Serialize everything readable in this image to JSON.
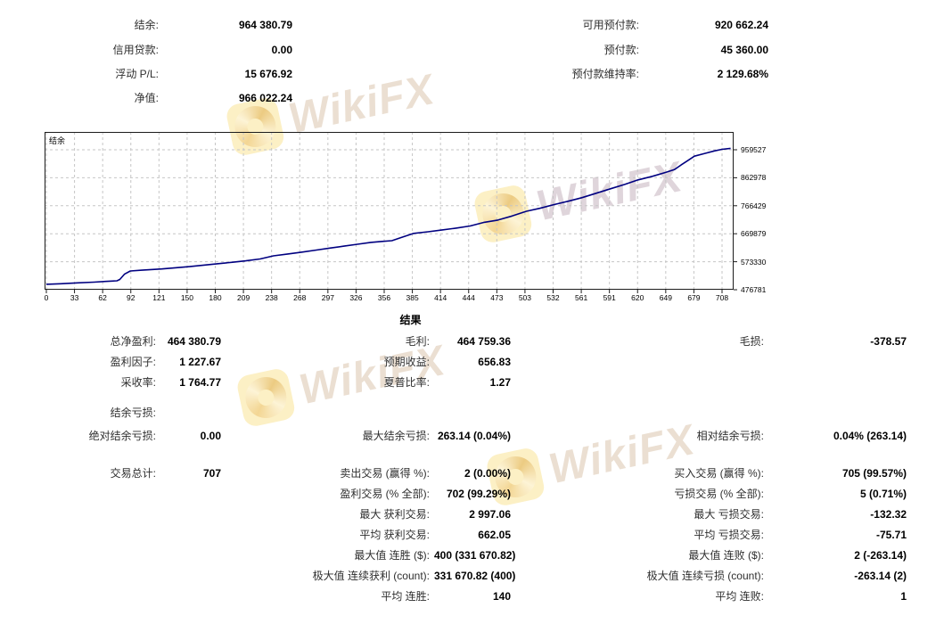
{
  "watermark": {
    "brand": "WikiFX"
  },
  "colors": {
    "line": "#000080",
    "grid": "#c6c6c6",
    "chart_border": "#1c1c1c",
    "watermark_text": "#d8c0a6",
    "watermark_logo_bg": "#fcf0c5"
  },
  "summary": {
    "left": [
      {
        "label": "结余:",
        "value": "964 380.79"
      },
      {
        "label": "信用贷款:",
        "value": "0.00"
      },
      {
        "label": "浮动 P/L:",
        "value": "15 676.92"
      },
      {
        "label": "净值:",
        "value": "966 022.24"
      }
    ],
    "right": [
      {
        "label": "可用预付款:",
        "value": "920 662.24"
      },
      {
        "label": "预付款:",
        "value": "45 360.00"
      },
      {
        "label": "预付款维持率:",
        "value": "2 129.68%"
      }
    ]
  },
  "chart_data": {
    "type": "line",
    "title": "",
    "series_name": "结余",
    "xlabel": "",
    "ylabel": "",
    "x_ticks": [
      0,
      33,
      62,
      92,
      121,
      150,
      180,
      209,
      238,
      268,
      297,
      326,
      356,
      385,
      414,
      444,
      473,
      503,
      532,
      561,
      591,
      620,
      649,
      679,
      708
    ],
    "y_ticks": [
      476781,
      573330,
      669879,
      766429,
      862978,
      959527
    ],
    "xlim": [
      0,
      720
    ],
    "ylim": [
      476781,
      1020000
    ],
    "grid": true,
    "legend_position": "top-left",
    "points": [
      [
        0,
        495500
      ],
      [
        15,
        497500
      ],
      [
        33,
        500500
      ],
      [
        50,
        503000
      ],
      [
        62,
        505500
      ],
      [
        74,
        507500
      ],
      [
        77,
        512000
      ],
      [
        82,
        531000
      ],
      [
        88,
        541500
      ],
      [
        100,
        544000
      ],
      [
        121,
        548500
      ],
      [
        135,
        552500
      ],
      [
        150,
        556500
      ],
      [
        165,
        561500
      ],
      [
        180,
        566500
      ],
      [
        195,
        571500
      ],
      [
        209,
        576500
      ],
      [
        224,
        583000
      ],
      [
        238,
        593500
      ],
      [
        253,
        600000
      ],
      [
        268,
        606500
      ],
      [
        283,
        613500
      ],
      [
        297,
        620500
      ],
      [
        312,
        627000
      ],
      [
        326,
        633500
      ],
      [
        340,
        640000
      ],
      [
        352,
        643500
      ],
      [
        362,
        646000
      ],
      [
        372,
        657000
      ],
      [
        385,
        671000
      ],
      [
        400,
        676500
      ],
      [
        414,
        682500
      ],
      [
        430,
        689500
      ],
      [
        444,
        696500
      ],
      [
        458,
        708500
      ],
      [
        473,
        717000
      ],
      [
        488,
        731000
      ],
      [
        503,
        747500
      ],
      [
        517,
        757500
      ],
      [
        532,
        770500
      ],
      [
        547,
        782000
      ],
      [
        561,
        794000
      ],
      [
        576,
        809500
      ],
      [
        591,
        825000
      ],
      [
        606,
        840000
      ],
      [
        620,
        855500
      ],
      [
        635,
        868000
      ],
      [
        649,
        881500
      ],
      [
        658,
        891000
      ],
      [
        665,
        907000
      ],
      [
        672,
        922000
      ],
      [
        679,
        937500
      ],
      [
        690,
        947000
      ],
      [
        700,
        955500
      ],
      [
        708,
        961000
      ],
      [
        717,
        964380
      ]
    ]
  },
  "results": {
    "title": "结果",
    "profit": [
      {
        "l_label": "总净盈利:",
        "l_value": "464 380.79",
        "m_label": "毛利:",
        "m_value": "464 759.36",
        "r_label": "毛损:",
        "r_value": "-378.57"
      },
      {
        "l_label": "盈利因子:",
        "l_value": "1 227.67",
        "m_label": "预期收益:",
        "m_value": "656.83"
      },
      {
        "l_label": "采收率:",
        "l_value": "1 764.77",
        "m_label": "夏普比率:",
        "m_value": "1.27"
      }
    ],
    "drawdown": [
      {
        "l_label": "结余亏损:"
      },
      {
        "l_label": "绝对结余亏损:",
        "l_value": "0.00",
        "m_label": "最大结余亏损:",
        "m_value": "263.14 (0.04%)",
        "r_label": "相对结余亏损:",
        "r_value": "0.04% (263.14)"
      }
    ],
    "trades": [
      {
        "l_label": "交易总计:",
        "l_value": "707",
        "m_label": "卖出交易 (赢得 %):",
        "m_value": "2 (0.00%)",
        "r_label": "买入交易 (赢得 %):",
        "r_value": "705 (99.57%)"
      },
      {
        "m_label": "盈利交易 (% 全部):",
        "m_value": "702 (99.29%)",
        "r_label": "亏损交易 (% 全部):",
        "r_value": "5 (0.71%)"
      },
      {
        "m_label": "最大 获利交易:",
        "m_value": "2 997.06",
        "r_label": "最大 亏损交易:",
        "r_value": "-132.32"
      },
      {
        "m_label": "平均 获利交易:",
        "m_value": "662.05",
        "r_label": "平均 亏损交易:",
        "r_value": "-75.71"
      },
      {
        "m_label": "最大值 连胜 ($):",
        "m_value": "400 (331 670.82)",
        "r_label": "最大值 连败 ($):",
        "r_value": "2 (-263.14)"
      },
      {
        "m_label": "极大值 连续获利 (count):",
        "m_value": "331 670.82 (400)",
        "r_label": "极大值 连续亏损 (count):",
        "r_value": "-263.14 (2)"
      },
      {
        "m_label": "平均 连胜:",
        "m_value": "140",
        "r_label": "平均 连败:",
        "r_value": "1"
      }
    ]
  }
}
